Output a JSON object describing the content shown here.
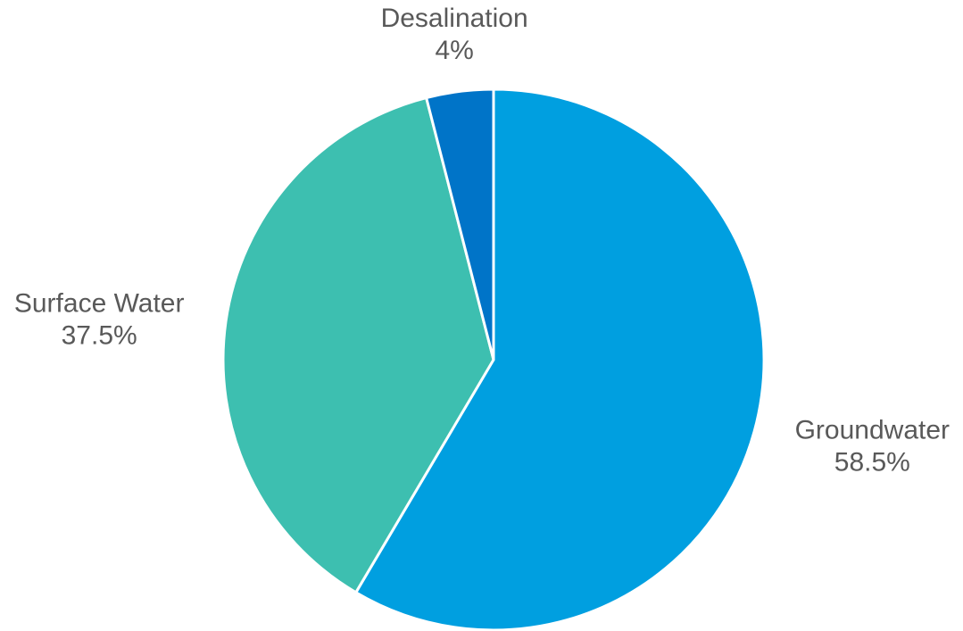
{
  "chart_data": {
    "type": "pie",
    "title": "",
    "categories": [
      "Groundwater",
      "Surface Water",
      "Desalination"
    ],
    "values": [
      58.5,
      37.5,
      4
    ],
    "value_labels": [
      "58.5%",
      "37.5%",
      "4%"
    ],
    "colors": [
      "#009FE0",
      "#3DBFB0",
      "#0074C8"
    ],
    "start_angle_deg": 0,
    "direction": "clockwise",
    "legend": "none",
    "labels_position": "outside"
  }
}
